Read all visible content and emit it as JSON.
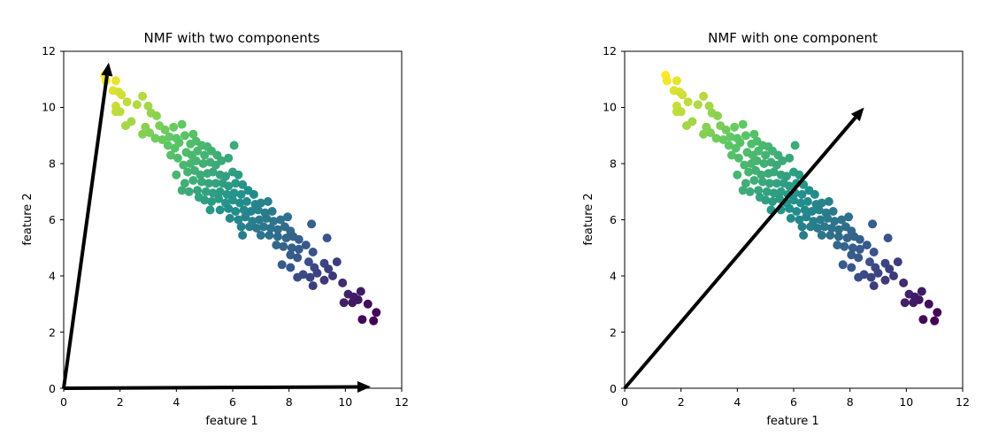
{
  "chart_data": [
    {
      "type": "scatter",
      "title": "NMF with two components",
      "xlabel": "feature 1",
      "ylabel": "feature 2",
      "xlim": [
        0,
        12
      ],
      "ylim": [
        0,
        12
      ],
      "xticks": [
        "0",
        "2",
        "4",
        "6",
        "8",
        "10",
        "12"
      ],
      "yticks": [
        "0",
        "2",
        "4",
        "6",
        "8",
        "10",
        "12"
      ],
      "colormap": [
        "#440154",
        "#3b528b",
        "#21918c",
        "#5ec962",
        "#fde725"
      ],
      "arrows": [
        {
          "x0": 0,
          "y0": 0,
          "x1": 1.6,
          "y1": 11.6
        },
        {
          "x0": 0,
          "y0": 0,
          "x1": 10.9,
          "y1": 0.05
        }
      ]
    },
    {
      "type": "scatter",
      "title": "NMF with one component",
      "xlabel": "feature 1",
      "ylabel": "feature 2",
      "xlim": [
        0,
        12
      ],
      "ylim": [
        0,
        12
      ],
      "xticks": [
        "0",
        "2",
        "4",
        "6",
        "8",
        "10",
        "12"
      ],
      "yticks": [
        "0",
        "2",
        "4",
        "6",
        "8",
        "10",
        "12"
      ],
      "colormap": [
        "#440154",
        "#3b528b",
        "#21918c",
        "#5ec962",
        "#fde725"
      ],
      "arrows": [
        {
          "x0": 0,
          "y0": 0,
          "x1": 8.5,
          "y1": 10
        }
      ]
    }
  ],
  "points": [
    [
      1.45,
      11.15
    ],
    [
      1.5,
      10.95
    ],
    [
      1.85,
      10.95
    ],
    [
      1.75,
      10.6
    ],
    [
      1.95,
      10.55
    ],
    [
      2.05,
      10.45
    ],
    [
      2.8,
      10.4
    ],
    [
      1.85,
      10.05
    ],
    [
      2.25,
      10.2
    ],
    [
      2.6,
      10.1
    ],
    [
      3.0,
      10.05
    ],
    [
      1.85,
      9.85
    ],
    [
      2.0,
      9.85
    ],
    [
      2.4,
      9.5
    ],
    [
      2.2,
      9.35
    ],
    [
      3.1,
      9.8
    ],
    [
      3.3,
      9.7
    ],
    [
      2.9,
      9.3
    ],
    [
      3.4,
      9.35
    ],
    [
      3.6,
      9.2
    ],
    [
      2.8,
      9.05
    ],
    [
      3.05,
      9.1
    ],
    [
      3.9,
      9.3
    ],
    [
      4.2,
      9.4
    ],
    [
      3.25,
      8.9
    ],
    [
      3.5,
      8.85
    ],
    [
      3.75,
      8.95
    ],
    [
      4.0,
      8.9
    ],
    [
      4.3,
      9.0
    ],
    [
      4.6,
      9.05
    ],
    [
      3.7,
      8.65
    ],
    [
      3.95,
      8.55
    ],
    [
      4.1,
      8.75
    ],
    [
      4.5,
      8.7
    ],
    [
      4.7,
      8.8
    ],
    [
      4.9,
      8.65
    ],
    [
      5.1,
      8.6
    ],
    [
      4.35,
      8.4
    ],
    [
      4.55,
      8.3
    ],
    [
      4.75,
      8.45
    ],
    [
      5.0,
      8.3
    ],
    [
      5.25,
      8.45
    ],
    [
      5.45,
      8.3
    ],
    [
      3.8,
      8.3
    ],
    [
      4.05,
      8.2
    ],
    [
      4.25,
      7.95
    ],
    [
      4.5,
      8.0
    ],
    [
      4.7,
      8.1
    ],
    [
      4.95,
      8.0
    ],
    [
      5.2,
      8.05
    ],
    [
      5.4,
      7.95
    ],
    [
      5.6,
      8.1
    ],
    [
      5.85,
      8.2
    ],
    [
      6.05,
      8.65
    ],
    [
      4.0,
      7.6
    ],
    [
      4.4,
      7.7
    ],
    [
      4.65,
      7.75
    ],
    [
      4.85,
      7.6
    ],
    [
      5.1,
      7.65
    ],
    [
      5.3,
      7.7
    ],
    [
      5.55,
      7.6
    ],
    [
      5.75,
      7.55
    ],
    [
      6.0,
      7.7
    ],
    [
      6.2,
      7.6
    ],
    [
      4.3,
      7.3
    ],
    [
      4.6,
      7.4
    ],
    [
      4.9,
      7.35
    ],
    [
      5.15,
      7.3
    ],
    [
      5.4,
      7.3
    ],
    [
      5.65,
      7.3
    ],
    [
      5.85,
      7.2
    ],
    [
      6.1,
      7.3
    ],
    [
      6.35,
      7.25
    ],
    [
      4.2,
      7.05
    ],
    [
      4.45,
      7.0
    ],
    [
      4.75,
      7.05
    ],
    [
      5.05,
      7.0
    ],
    [
      5.3,
      6.95
    ],
    [
      5.55,
      7.0
    ],
    [
      5.8,
      6.9
    ],
    [
      6.05,
      6.95
    ],
    [
      6.3,
      6.9
    ],
    [
      6.55,
      7.05
    ],
    [
      6.75,
      6.9
    ],
    [
      4.8,
      6.8
    ],
    [
      5.0,
      6.7
    ],
    [
      5.25,
      6.65
    ],
    [
      5.5,
      6.75
    ],
    [
      5.75,
      6.6
    ],
    [
      6.0,
      6.7
    ],
    [
      6.25,
      6.6
    ],
    [
      6.5,
      6.65
    ],
    [
      6.8,
      6.55
    ],
    [
      7.0,
      6.6
    ],
    [
      7.25,
      6.65
    ],
    [
      5.2,
      6.35
    ],
    [
      5.55,
      6.35
    ],
    [
      5.85,
      6.4
    ],
    [
      6.1,
      6.3
    ],
    [
      6.4,
      6.35
    ],
    [
      6.65,
      6.3
    ],
    [
      6.9,
      6.35
    ],
    [
      7.15,
      6.25
    ],
    [
      7.4,
      6.3
    ],
    [
      5.9,
      6.05
    ],
    [
      6.2,
      6.0
    ],
    [
      6.45,
      6.1
    ],
    [
      6.7,
      5.95
    ],
    [
      6.95,
      6.0
    ],
    [
      7.2,
      6.05
    ],
    [
      7.45,
      5.95
    ],
    [
      7.7,
      6.0
    ],
    [
      7.95,
      6.1
    ],
    [
      6.3,
      5.75
    ],
    [
      6.6,
      5.75
    ],
    [
      6.85,
      5.7
    ],
    [
      7.1,
      5.75
    ],
    [
      7.35,
      5.7
    ],
    [
      7.6,
      5.65
    ],
    [
      7.85,
      5.75
    ],
    [
      8.05,
      5.6
    ],
    [
      8.8,
      5.85
    ],
    [
      6.35,
      5.45
    ],
    [
      7.0,
      5.45
    ],
    [
      7.3,
      5.45
    ],
    [
      7.6,
      5.4
    ],
    [
      7.9,
      5.35
    ],
    [
      8.15,
      5.4
    ],
    [
      8.35,
      5.3
    ],
    [
      8.6,
      5.1
    ],
    [
      9.35,
      5.35
    ],
    [
      7.55,
      5.1
    ],
    [
      7.8,
      5.05
    ],
    [
      8.1,
      5.0
    ],
    [
      8.35,
      4.95
    ],
    [
      8.85,
      4.85
    ],
    [
      8.05,
      4.75
    ],
    [
      8.3,
      4.65
    ],
    [
      8.7,
      4.5
    ],
    [
      9.25,
      4.45
    ],
    [
      9.7,
      4.5
    ],
    [
      7.75,
      4.4
    ],
    [
      8.05,
      4.3
    ],
    [
      8.9,
      4.3
    ],
    [
      9.4,
      4.25
    ],
    [
      8.5,
      4.05
    ],
    [
      9.0,
      4.1
    ],
    [
      9.55,
      4.0
    ],
    [
      8.3,
      3.95
    ],
    [
      8.75,
      3.95
    ],
    [
      9.25,
      3.85
    ],
    [
      8.85,
      3.65
    ],
    [
      9.9,
      3.75
    ],
    [
      10.1,
      3.35
    ],
    [
      10.3,
      3.25
    ],
    [
      10.55,
      3.45
    ],
    [
      10.45,
      3.15
    ],
    [
      9.95,
      3.05
    ],
    [
      10.25,
      3.05
    ],
    [
      10.8,
      3.0
    ],
    [
      10.6,
      2.45
    ],
    [
      11.1,
      2.7
    ],
    [
      11.0,
      2.4
    ]
  ]
}
